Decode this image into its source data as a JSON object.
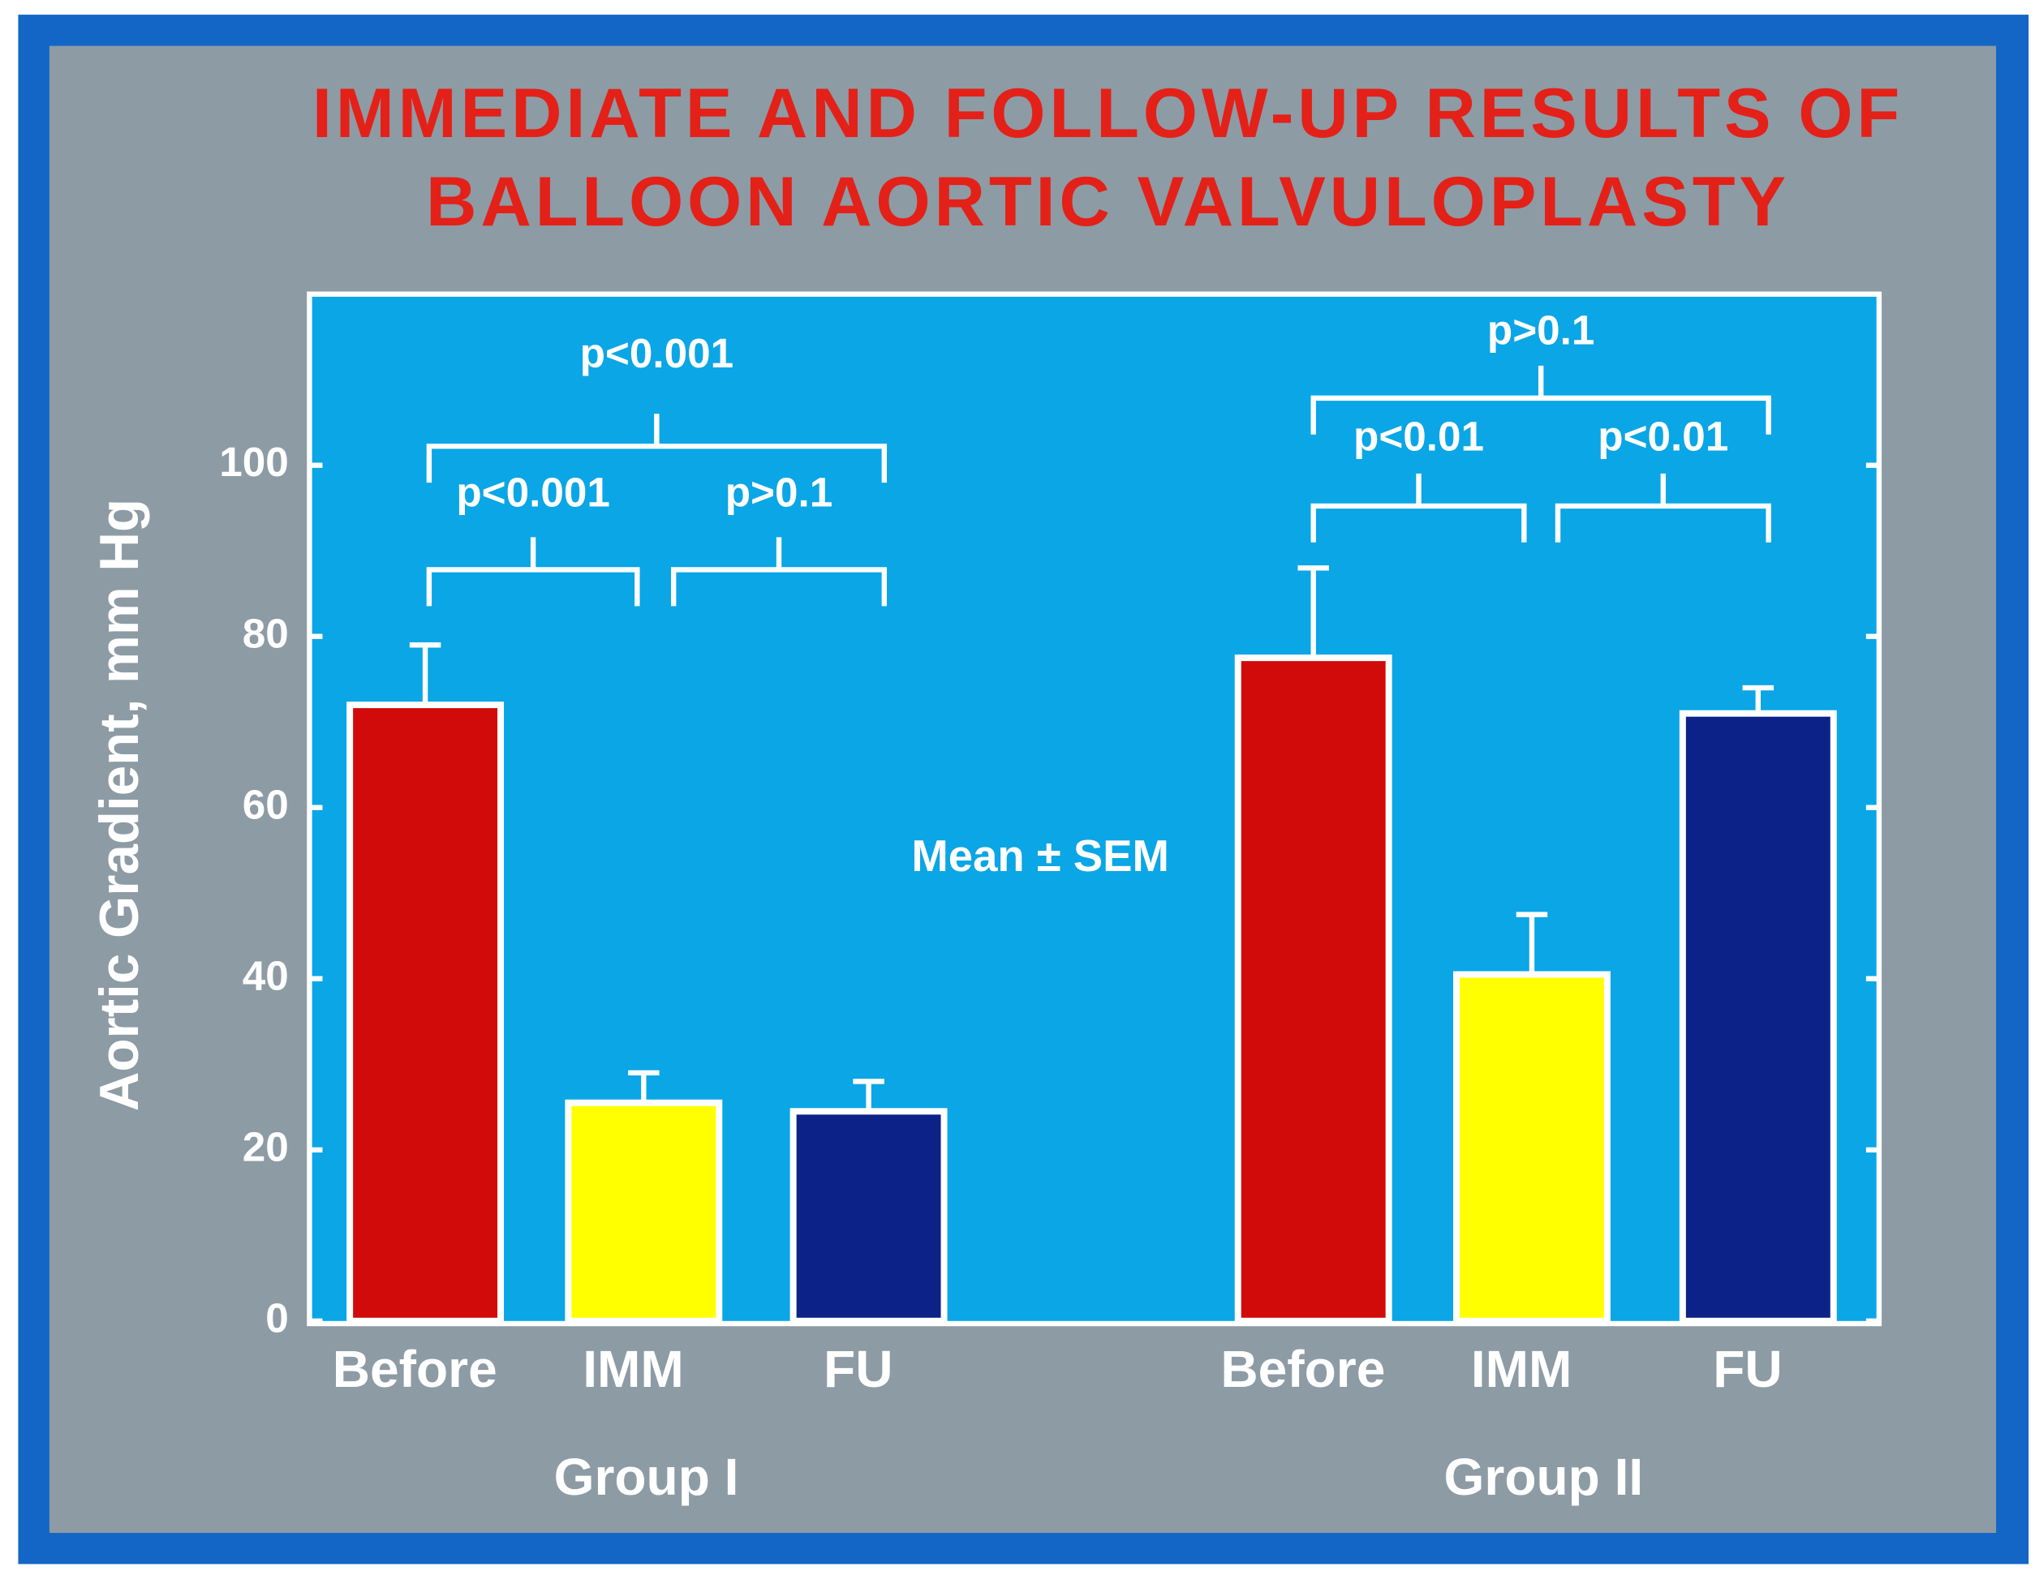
{
  "chart_data": {
    "type": "grouped_bar",
    "title": [
      "IMMEDIATE AND FOLLOW-UP RESULTS OF",
      "BALLOON AORTIC VALVULOPLASTY"
    ],
    "y_label": "Aortic Gradient, mm Hg",
    "note": "Mean ± SEM",
    "ylim": [
      0,
      120
    ],
    "yticks": [
      0,
      20,
      40,
      60,
      80,
      100
    ],
    "grid": false,
    "groups": [
      {
        "name": "Group I",
        "categories": [
          "Before",
          "IMM",
          "FU"
        ],
        "values": [
          72,
          25.5,
          24.5
        ],
        "errors": [
          7,
          3.5,
          3.5
        ],
        "colors": [
          "#d10a0a",
          "#ffff00",
          "#0c2288"
        ]
      },
      {
        "name": "Group II",
        "categories": [
          "Before",
          "IMM",
          "FU"
        ],
        "values": [
          77.5,
          40.5,
          71
        ],
        "errors": [
          10.5,
          7,
          3
        ],
        "colors": [
          "#d10a0a",
          "#ffff00",
          "#0c2288"
        ]
      }
    ],
    "annotations": [
      "p<0.001",
      "p>0.1",
      "p<0.001",
      "p<0.01",
      "p<0.01",
      "p>0.1"
    ]
  }
}
